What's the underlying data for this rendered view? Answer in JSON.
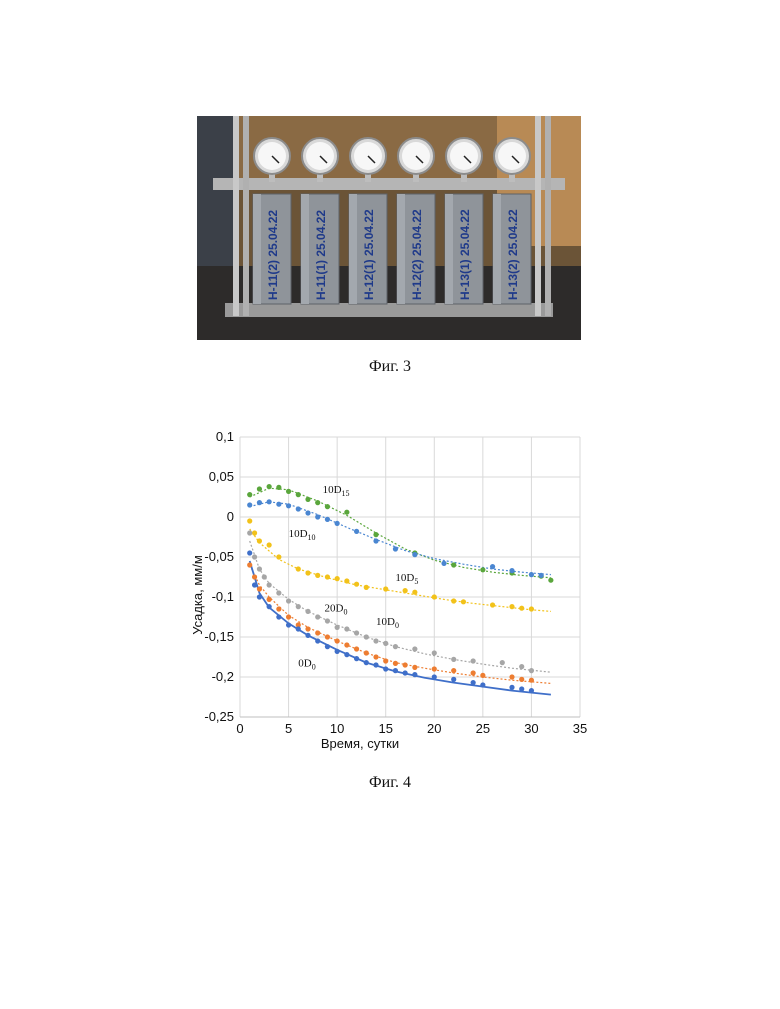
{
  "figures": {
    "photo_caption": "Фиг. 3",
    "chart_caption": "Фиг. 4"
  },
  "photo": {
    "specimen_labels": [
      "Н-11(2) 25.04.22",
      "Н-11(1) 25.04.22",
      "Н-12(1) 25.04.22",
      "Н-12(2) 25.04.22",
      "Н-13(1) 25.04.22",
      "Н-13(2) 25.04.22"
    ]
  },
  "chart_data": {
    "type": "scatter",
    "xlabel": "Время, сутки",
    "ylabel": "Усадка, мм/м",
    "xlim": [
      0,
      35
    ],
    "ylim": [
      -0.25,
      0.1
    ],
    "xticks": [
      "0",
      "5",
      "10",
      "15",
      "20",
      "25",
      "30",
      "35"
    ],
    "yticks": [
      "0,1",
      "0,05",
      "0",
      "-0,05",
      "-0,1",
      "-0,15",
      "-0,2",
      "-0,25"
    ],
    "grid": true,
    "series": [
      {
        "name": "10D15",
        "color": "#5aa63c",
        "points": [
          [
            1,
            0.028
          ],
          [
            2,
            0.035
          ],
          [
            3,
            0.038
          ],
          [
            4,
            0.037
          ],
          [
            5,
            0.032
          ],
          [
            6,
            0.028
          ],
          [
            7,
            0.022
          ],
          [
            8,
            0.018
          ],
          [
            9,
            0.013
          ],
          [
            11,
            0.006
          ],
          [
            14,
            -0.022
          ],
          [
            18,
            -0.045
          ],
          [
            22,
            -0.06
          ],
          [
            25,
            -0.066
          ],
          [
            28,
            -0.07
          ],
          [
            31,
            -0.074
          ],
          [
            32,
            -0.079
          ]
        ],
        "fit": [
          [
            1,
            0.025
          ],
          [
            3,
            0.036
          ],
          [
            5,
            0.034
          ],
          [
            8,
            0.02
          ],
          [
            11,
            0.002
          ],
          [
            14,
            -0.02
          ],
          [
            17,
            -0.04
          ],
          [
            20,
            -0.054
          ],
          [
            23,
            -0.063
          ],
          [
            26,
            -0.069
          ],
          [
            29,
            -0.073
          ],
          [
            32,
            -0.076
          ]
        ]
      },
      {
        "name": "10D10",
        "color": "#4a86d1",
        "points": [
          [
            1,
            0.015
          ],
          [
            2,
            0.018
          ],
          [
            3,
            0.019
          ],
          [
            4,
            0.016
          ],
          [
            5,
            0.014
          ],
          [
            6,
            0.01
          ],
          [
            7,
            0.005
          ],
          [
            8,
            0.0
          ],
          [
            9,
            -0.003
          ],
          [
            10,
            -0.008
          ],
          [
            12,
            -0.018
          ],
          [
            14,
            -0.03
          ],
          [
            16,
            -0.04
          ],
          [
            18,
            -0.047
          ],
          [
            21,
            -0.058
          ],
          [
            26,
            -0.062
          ],
          [
            28,
            -0.067
          ],
          [
            30,
            -0.072
          ],
          [
            31,
            -0.073
          ]
        ],
        "fit": [
          [
            1,
            0.013
          ],
          [
            3,
            0.019
          ],
          [
            5,
            0.016
          ],
          [
            8,
            0.003
          ],
          [
            11,
            -0.013
          ],
          [
            14,
            -0.028
          ],
          [
            17,
            -0.042
          ],
          [
            20,
            -0.052
          ],
          [
            23,
            -0.059
          ],
          [
            26,
            -0.065
          ],
          [
            29,
            -0.069
          ],
          [
            32,
            -0.072
          ]
        ]
      },
      {
        "name": "10D5",
        "color": "#f2c21a",
        "points": [
          [
            1,
            -0.005
          ],
          [
            1.5,
            -0.02
          ],
          [
            2,
            -0.03
          ],
          [
            3,
            -0.035
          ],
          [
            4,
            -0.05
          ],
          [
            6,
            -0.065
          ],
          [
            7,
            -0.07
          ],
          [
            8,
            -0.073
          ],
          [
            9,
            -0.075
          ],
          [
            10,
            -0.077
          ],
          [
            11,
            -0.08
          ],
          [
            12,
            -0.084
          ],
          [
            13,
            -0.088
          ],
          [
            15,
            -0.09
          ],
          [
            17,
            -0.092
          ],
          [
            18,
            -0.094
          ],
          [
            20,
            -0.1
          ],
          [
            22,
            -0.105
          ],
          [
            23,
            -0.106
          ],
          [
            26,
            -0.11
          ],
          [
            28,
            -0.112
          ],
          [
            29,
            -0.114
          ],
          [
            30,
            -0.115
          ]
        ],
        "fit": [
          [
            1,
            -0.015
          ],
          [
            2,
            -0.032
          ],
          [
            4,
            -0.053
          ],
          [
            6,
            -0.065
          ],
          [
            9,
            -0.076
          ],
          [
            12,
            -0.085
          ],
          [
            15,
            -0.091
          ],
          [
            18,
            -0.097
          ],
          [
            21,
            -0.103
          ],
          [
            24,
            -0.108
          ],
          [
            27,
            -0.112
          ],
          [
            30,
            -0.116
          ],
          [
            32,
            -0.118
          ]
        ]
      },
      {
        "name": "20D0",
        "color": "#a6a6a6",
        "points": [
          [
            1,
            -0.02
          ],
          [
            1.5,
            -0.05
          ],
          [
            2,
            -0.065
          ],
          [
            2.5,
            -0.075
          ],
          [
            3,
            -0.085
          ],
          [
            4,
            -0.095
          ],
          [
            5,
            -0.105
          ],
          [
            6,
            -0.112
          ],
          [
            7,
            -0.118
          ],
          [
            8,
            -0.125
          ],
          [
            9,
            -0.13
          ],
          [
            10,
            -0.138
          ],
          [
            11,
            -0.14
          ],
          [
            12,
            -0.145
          ],
          [
            13,
            -0.15
          ],
          [
            14,
            -0.155
          ],
          [
            15,
            -0.158
          ],
          [
            16,
            -0.162
          ],
          [
            18,
            -0.165
          ],
          [
            20,
            -0.17
          ],
          [
            22,
            -0.178
          ],
          [
            24,
            -0.18
          ],
          [
            27,
            -0.182
          ],
          [
            29,
            -0.187
          ],
          [
            30,
            -0.192
          ]
        ],
        "fit": [
          [
            1,
            -0.03
          ],
          [
            2,
            -0.065
          ],
          [
            3,
            -0.083
          ],
          [
            5,
            -0.103
          ],
          [
            7,
            -0.118
          ],
          [
            10,
            -0.135
          ],
          [
            13,
            -0.15
          ],
          [
            16,
            -0.162
          ],
          [
            19,
            -0.171
          ],
          [
            22,
            -0.178
          ],
          [
            25,
            -0.184
          ],
          [
            28,
            -0.189
          ],
          [
            32,
            -0.194
          ]
        ]
      },
      {
        "name": "10D0",
        "color": "#ed7d31",
        "points": [
          [
            1,
            -0.06
          ],
          [
            1.5,
            -0.075
          ],
          [
            2,
            -0.09
          ],
          [
            3,
            -0.103
          ],
          [
            4,
            -0.115
          ],
          [
            5,
            -0.125
          ],
          [
            6,
            -0.135
          ],
          [
            7,
            -0.14
          ],
          [
            8,
            -0.145
          ],
          [
            9,
            -0.15
          ],
          [
            10,
            -0.155
          ],
          [
            11,
            -0.16
          ],
          [
            12,
            -0.165
          ],
          [
            13,
            -0.17
          ],
          [
            14,
            -0.175
          ],
          [
            15,
            -0.18
          ],
          [
            16,
            -0.183
          ],
          [
            17,
            -0.185
          ],
          [
            18,
            -0.188
          ],
          [
            20,
            -0.19
          ],
          [
            22,
            -0.192
          ],
          [
            24,
            -0.195
          ],
          [
            25,
            -0.198
          ],
          [
            28,
            -0.2
          ],
          [
            29,
            -0.203
          ],
          [
            30,
            -0.204
          ]
        ],
        "fit": [
          [
            1,
            -0.06
          ],
          [
            2,
            -0.085
          ],
          [
            3,
            -0.1
          ],
          [
            5,
            -0.123
          ],
          [
            7,
            -0.138
          ],
          [
            10,
            -0.155
          ],
          [
            13,
            -0.17
          ],
          [
            16,
            -0.182
          ],
          [
            19,
            -0.189
          ],
          [
            22,
            -0.195
          ],
          [
            25,
            -0.2
          ],
          [
            28,
            -0.204
          ],
          [
            32,
            -0.208
          ]
        ]
      },
      {
        "name": "0D0",
        "color": "#3f6fc9",
        "points": [
          [
            1,
            -0.045
          ],
          [
            1.5,
            -0.085
          ],
          [
            2,
            -0.1
          ],
          [
            3,
            -0.112
          ],
          [
            4,
            -0.125
          ],
          [
            5,
            -0.135
          ],
          [
            6,
            -0.14
          ],
          [
            7,
            -0.148
          ],
          [
            8,
            -0.155
          ],
          [
            9,
            -0.162
          ],
          [
            10,
            -0.168
          ],
          [
            11,
            -0.172
          ],
          [
            12,
            -0.177
          ],
          [
            13,
            -0.182
          ],
          [
            14,
            -0.185
          ],
          [
            15,
            -0.19
          ],
          [
            16,
            -0.192
          ],
          [
            17,
            -0.195
          ],
          [
            18,
            -0.197
          ],
          [
            20,
            -0.2
          ],
          [
            22,
            -0.203
          ],
          [
            24,
            -0.207
          ],
          [
            25,
            -0.21
          ],
          [
            28,
            -0.213
          ],
          [
            29,
            -0.215
          ],
          [
            30,
            -0.217
          ]
        ],
        "fit": [
          [
            1,
            -0.055
          ],
          [
            2,
            -0.095
          ],
          [
            3,
            -0.113
          ],
          [
            5,
            -0.133
          ],
          [
            7,
            -0.148
          ],
          [
            10,
            -0.166
          ],
          [
            13,
            -0.182
          ],
          [
            16,
            -0.193
          ],
          [
            19,
            -0.201
          ],
          [
            22,
            -0.207
          ],
          [
            25,
            -0.212
          ],
          [
            28,
            -0.217
          ],
          [
            32,
            -0.222
          ]
        ]
      }
    ],
    "annotations": [
      {
        "series": "10D15",
        "base": "10D",
        "sub": "15",
        "at": [
          8.5,
          0.03
        ]
      },
      {
        "series": "10D10",
        "base": "10D",
        "sub": "10",
        "at": [
          5,
          -0.025
        ]
      },
      {
        "series": "10D5",
        "base": "10D",
        "sub": "5",
        "at": [
          16,
          -0.08
        ]
      },
      {
        "series": "20D0",
        "base": "20D",
        "sub": "0",
        "at": [
          8.7,
          -0.118
        ]
      },
      {
        "series": "10D0",
        "base": "10D",
        "sub": "0",
        "at": [
          14,
          -0.135
        ]
      },
      {
        "series": "0D0",
        "base": "0D",
        "sub": "0",
        "at": [
          6,
          -0.187
        ]
      }
    ]
  }
}
